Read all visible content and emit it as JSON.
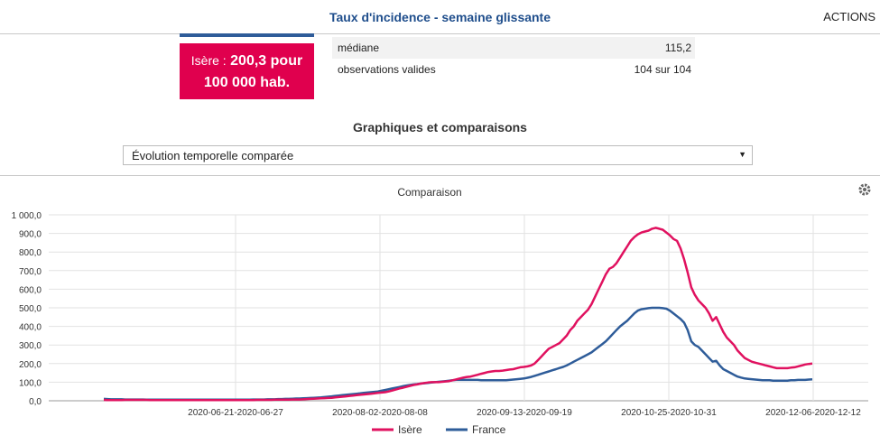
{
  "header": {
    "title": "Taux d'incidence - semaine glissante",
    "actions_label": "ACTIONS"
  },
  "stat_box": {
    "region": "Isère :",
    "value_line1": "200,3 pour",
    "value_line2": "100 000 hab."
  },
  "stats_table": [
    {
      "label": "médiane",
      "value": "115,2"
    },
    {
      "label": "observations valides",
      "value": "104 sur 104"
    }
  ],
  "section": {
    "title": "Graphiques et comparaisons",
    "select_value": "Évolution temporelle comparée"
  },
  "chart": {
    "title": "Comparaison",
    "settings_icon": "gear-icon"
  },
  "chart_data": {
    "type": "line",
    "title": "Comparaison",
    "ylim": [
      0,
      1000
    ],
    "y_ticks": [
      "0,0",
      "100,0",
      "200,0",
      "300,0",
      "400,0",
      "500,0",
      "600,0",
      "700,0",
      "800,0",
      "900,0",
      "1 000,0"
    ],
    "x_ticks": [
      "2020-06-21-2020-06-27",
      "2020-08-02-2020-08-08",
      "2020-09-13-2020-09-19",
      "2020-10-25-2020-10-31",
      "2020-12-06-2020-12-12"
    ],
    "grid": true,
    "legend": "bottom",
    "series": [
      {
        "name": "Isère",
        "color": "#e0115f",
        "values": [
          5,
          4,
          4,
          4,
          4,
          4,
          5,
          5,
          5,
          5,
          5,
          5,
          5,
          4,
          4,
          4,
          4,
          4,
          4,
          4,
          4,
          4,
          4,
          4,
          4,
          4,
          4,
          4,
          4,
          4,
          4,
          4,
          4,
          4,
          4,
          4,
          4,
          4,
          4,
          4,
          4,
          4,
          4,
          5,
          5,
          5,
          5,
          5,
          6,
          6,
          6,
          6,
          6,
          7,
          7,
          7,
          8,
          9,
          10,
          11,
          12,
          13,
          14,
          15,
          16,
          18,
          20,
          22,
          24,
          26,
          28,
          30,
          32,
          34,
          36,
          38,
          40,
          42,
          44,
          46,
          50,
          55,
          60,
          66,
          70,
          75,
          80,
          85,
          88,
          92,
          95,
          98,
          100,
          100,
          100,
          102,
          104,
          106,
          110,
          115,
          120,
          125,
          128,
          130,
          135,
          140,
          145,
          150,
          155,
          158,
          160,
          160,
          162,
          165,
          168,
          170,
          175,
          180,
          182,
          185,
          190,
          200,
          220,
          240,
          260,
          280,
          290,
          300,
          310,
          330,
          350,
          380,
          400,
          430,
          450,
          470,
          490,
          520,
          560,
          600,
          640,
          680,
          710,
          720,
          740,
          770,
          800,
          830,
          860,
          880,
          895,
          905,
          910,
          915,
          925,
          930,
          925,
          920,
          905,
          890,
          870,
          860,
          820,
          760,
          690,
          610,
          570,
          540,
          520,
          500,
          470,
          430,
          450,
          410,
          370,
          340,
          320,
          300,
          270,
          250,
          230,
          220,
          210,
          205,
          200,
          195,
          190,
          185,
          180,
          175,
          175,
          175,
          175,
          178,
          180,
          185,
          190,
          195,
          198,
          200
        ]
      },
      {
        "name": "France",
        "color": "#2e5c99",
        "values": [
          10,
          9,
          8,
          8,
          8,
          8,
          7,
          7,
          7,
          7,
          7,
          7,
          6,
          6,
          6,
          6,
          6,
          6,
          6,
          6,
          6,
          6,
          6,
          6,
          6,
          6,
          6,
          6,
          6,
          6,
          6,
          6,
          6,
          6,
          6,
          6,
          6,
          6,
          6,
          6,
          6,
          6,
          7,
          7,
          7,
          7,
          8,
          8,
          8,
          9,
          9,
          10,
          10,
          11,
          12,
          12,
          13,
          14,
          15,
          16,
          17,
          18,
          20,
          22,
          24,
          26,
          28,
          30,
          32,
          34,
          36,
          38,
          40,
          42,
          44,
          46,
          48,
          50,
          54,
          58,
          62,
          66,
          70,
          74,
          78,
          82,
          85,
          88,
          90,
          92,
          94,
          96,
          98,
          100,
          102,
          104,
          106,
          108,
          110,
          112,
          112,
          112,
          112,
          112,
          112,
          112,
          110,
          110,
          110,
          110,
          110,
          110,
          110,
          110,
          112,
          114,
          116,
          118,
          120,
          124,
          128,
          134,
          140,
          146,
          152,
          158,
          164,
          170,
          176,
          182,
          190,
          200,
          210,
          220,
          230,
          240,
          250,
          260,
          275,
          290,
          305,
          320,
          340,
          360,
          380,
          400,
          415,
          430,
          450,
          470,
          485,
          492,
          495,
          498,
          500,
          500,
          500,
          498,
          495,
          485,
          470,
          455,
          440,
          420,
          380,
          320,
          300,
          290,
          270,
          250,
          230,
          210,
          215,
          190,
          170,
          160,
          150,
          140,
          130,
          125,
          120,
          118,
          116,
          114,
          112,
          110,
          110,
          110,
          108,
          108,
          108,
          108,
          108,
          110,
          110,
          112,
          112,
          112,
          114,
          115
        ]
      }
    ]
  }
}
